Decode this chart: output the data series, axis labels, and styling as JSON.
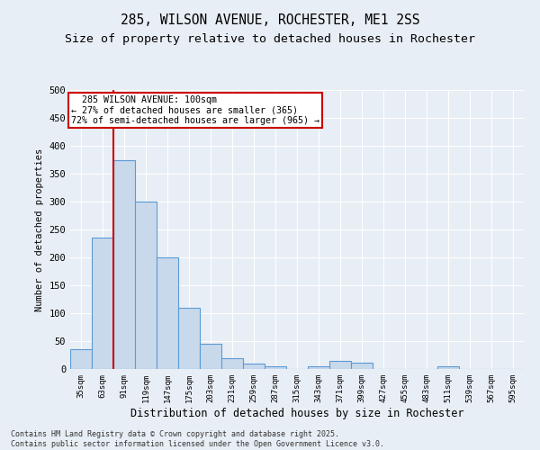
{
  "title_line1": "285, WILSON AVENUE, ROCHESTER, ME1 2SS",
  "title_line2": "Size of property relative to detached houses in Rochester",
  "xlabel": "Distribution of detached houses by size in Rochester",
  "ylabel": "Number of detached properties",
  "categories": [
    "35sqm",
    "63sqm",
    "91sqm",
    "119sqm",
    "147sqm",
    "175sqm",
    "203sqm",
    "231sqm",
    "259sqm",
    "287sqm",
    "315sqm",
    "343sqm",
    "371sqm",
    "399sqm",
    "427sqm",
    "455sqm",
    "483sqm",
    "511sqm",
    "539sqm",
    "567sqm",
    "595sqm"
  ],
  "values": [
    35,
    235,
    375,
    300,
    200,
    110,
    45,
    20,
    10,
    5,
    0,
    5,
    15,
    12,
    0,
    0,
    0,
    5,
    0,
    0,
    0
  ],
  "bar_color": "#c9d9ec",
  "bar_edge_color": "#5b9bd5",
  "vline_x": 1.5,
  "annotation_text": "  285 WILSON AVENUE: 100sqm  \n← 27% of detached houses are smaller (365)\n72% of semi-detached houses are larger (965) →",
  "annotation_box_color": "#ffffff",
  "annotation_box_edge": "#cc0000",
  "vline_color": "#cc0000",
  "background_color": "#e8eef5",
  "plot_background": "#e8eef5",
  "footer_line1": "Contains HM Land Registry data © Crown copyright and database right 2025.",
  "footer_line2": "Contains public sector information licensed under the Open Government Licence v3.0.",
  "ylim": [
    0,
    500
  ],
  "yticks": [
    0,
    50,
    100,
    150,
    200,
    250,
    300,
    350,
    400,
    450,
    500
  ],
  "grid_color": "#ffffff",
  "title_fontsize": 10.5,
  "subtitle_fontsize": 9.5
}
